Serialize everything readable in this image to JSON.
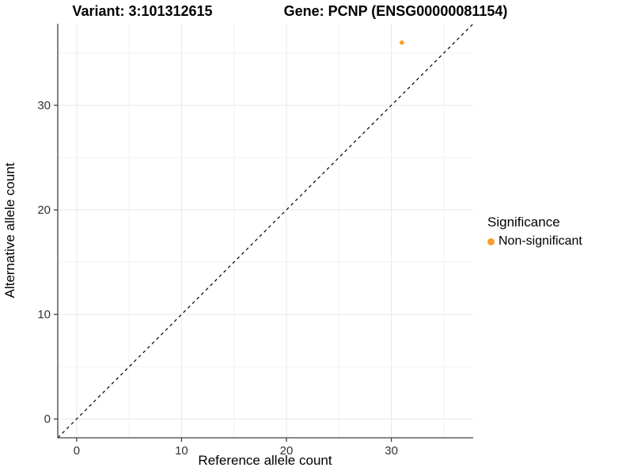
{
  "titles": {
    "variant": "Variant: 3:101312615",
    "gene": "Gene: PCNP (ENSG00000081154)"
  },
  "legend": {
    "title": "Significance",
    "items": [
      {
        "label": "Non-significant",
        "color": "#FA9E2E"
      }
    ]
  },
  "colors": {
    "background": "#ffffff",
    "grid_major": "#e8e8e8",
    "grid_minor": "#f2f2f2",
    "axis_line": "#404040",
    "tick_label": "#333333",
    "identity_line": "#000000",
    "point": "#FA9E2E"
  },
  "chart_data": {
    "type": "scatter",
    "title": "Variant: 3:101312615   Gene: PCNP (ENSG00000081154)",
    "xlabel": "Reference allele count",
    "ylabel": "Alternative allele count",
    "xlim": [
      -1.8,
      37.8
    ],
    "ylim": [
      -1.8,
      37.8
    ],
    "x_ticks": [
      0,
      10,
      20,
      30
    ],
    "y_ticks": [
      0,
      10,
      20,
      30
    ],
    "x_minor_ticks": [
      5,
      15,
      25,
      35
    ],
    "y_minor_ticks": [
      5,
      15,
      25,
      35
    ],
    "grid": true,
    "legend_position": "right",
    "reference_line": {
      "type": "identity",
      "slope": 1,
      "intercept": 0,
      "style": "dashed"
    },
    "series": [
      {
        "name": "Non-significant",
        "color": "#FA9E2E",
        "points": [
          {
            "x": 31,
            "y": 36
          }
        ]
      }
    ]
  }
}
